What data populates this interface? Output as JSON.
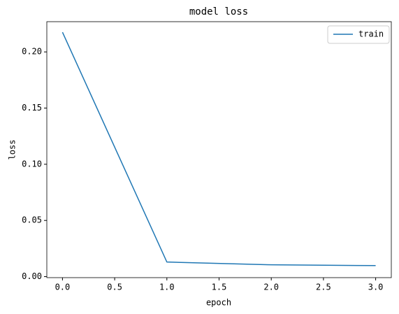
{
  "chart_data": {
    "type": "line",
    "title": "model loss",
    "xlabel": "epoch",
    "ylabel": "loss",
    "x": [
      0,
      1,
      2,
      3
    ],
    "series": [
      {
        "name": "train",
        "color": "#1f77b4",
        "values": [
          0.2175,
          0.013,
          0.0105,
          0.0098
        ]
      }
    ],
    "xlim": [
      -0.15,
      3.15
    ],
    "xticks": [
      {
        "value": 0,
        "label": "0.0"
      },
      {
        "value": 0.5,
        "label": "0.5"
      },
      {
        "value": 1,
        "label": "1.0"
      },
      {
        "value": 1.5,
        "label": "1.5"
      },
      {
        "value": 2,
        "label": "2.0"
      },
      {
        "value": 2.5,
        "label": "2.5"
      },
      {
        "value": 3,
        "label": "3.0"
      }
    ],
    "ylim": [
      -0.0009,
      0.2269
    ],
    "yticks": [
      {
        "value": 0,
        "label": "0.00"
      },
      {
        "value": 0.05,
        "label": "0.05"
      },
      {
        "value": 0.1,
        "label": "0.10"
      },
      {
        "value": 0.15,
        "label": "0.15"
      },
      {
        "value": 0.2,
        "label": "0.20"
      }
    ],
    "grid": false,
    "legend": "upper right"
  }
}
